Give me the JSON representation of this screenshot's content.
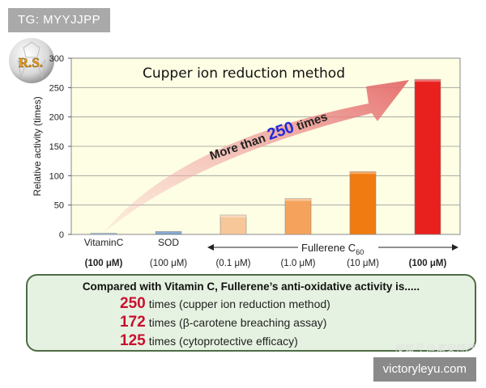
{
  "tag": "TG: MYYJJPP",
  "logo_text": "R.S.",
  "site": "victoryleyu.com",
  "watermark": "搜狐号 @富安特产",
  "chart_data": {
    "type": "bar",
    "title": "Cupper ion reduction method",
    "ylabel": "Relative activity (times)",
    "ylim": [
      0,
      300
    ],
    "yticks": [
      0,
      50,
      100,
      150,
      200,
      250,
      300
    ],
    "grid": true,
    "categories": [
      "VitaminC",
      "SOD",
      "",
      "",
      "",
      ""
    ],
    "sublabels": [
      "(100 μM)",
      "(100 μM)",
      "(0.1 μM)",
      "(1.0 μM)",
      "(10 μM)",
      "(100 μM)"
    ],
    "group_label": "Fullerene C",
    "group_label_sub": "60",
    "values": [
      1,
      5,
      33,
      61,
      107,
      264
    ],
    "colors": [
      "#4a7ebb",
      "#4a7ebb",
      "#f7c79a",
      "#f5a35c",
      "#f07b10",
      "#e8211f"
    ],
    "arrow_text_prefix": "More than ",
    "arrow_text_number": "250",
    "arrow_text_suffix": " times"
  },
  "summary": {
    "title": "Compared with Vitamin C,  Fullerene’s anti-oxidative activity is.....",
    "lines": [
      {
        "value": "250",
        "text": "times (cupper ion reduction method)"
      },
      {
        "value": "172",
        "text": "times (β-carotene breaching assay)"
      },
      {
        "value": "125",
        "text": "times (cytoprotective efficacy)"
      }
    ]
  }
}
